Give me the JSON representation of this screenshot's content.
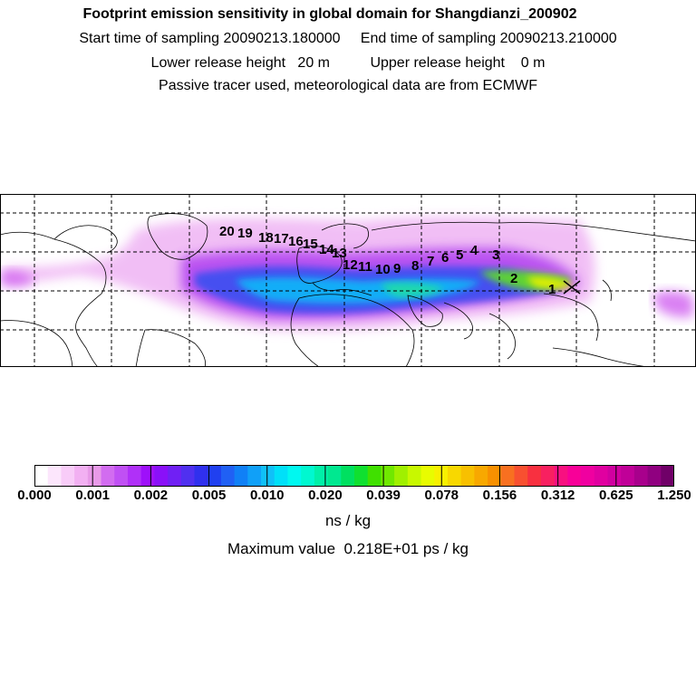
{
  "header": {
    "title": "Footprint emission sensitivity in global domain for Shangdianzi_200902",
    "line1": "Start time of sampling 20090213.180000     End time of sampling 20090213.210000",
    "line2": "Lower release height   20 m          Upper release height    0 m",
    "line3": "Passive tracer used, meteorological data are from ECMWF"
  },
  "map": {
    "grid": "dashed",
    "release_site_marker": "x-mark",
    "trajectory_labels": [
      "1",
      "2",
      "3",
      "4",
      "5",
      "6",
      "7",
      "8",
      "9",
      "10",
      "11",
      "12",
      "13",
      "14",
      "15",
      "16",
      "17",
      "18",
      "19",
      "20"
    ]
  },
  "colorbar": {
    "colors": [
      "#ffffff",
      "#fce6fc",
      "#f8ccf8",
      "#f2b0f2",
      "#e89ae8",
      "#d26cf0",
      "#c050f4",
      "#b030f8",
      "#9e10fa",
      "#8a10f8",
      "#7020f4",
      "#5030f0",
      "#3030ee",
      "#2040f0",
      "#2060f4",
      "#1080f6",
      "#10a0f8",
      "#10c0f8",
      "#00e0f8",
      "#00f8f0",
      "#00f8d0",
      "#00f0a8",
      "#00e890",
      "#00e060",
      "#10e030",
      "#40e000",
      "#70e800",
      "#a0f000",
      "#c8f800",
      "#e8fc00",
      "#f8f000",
      "#f8d800",
      "#f8c000",
      "#f8a800",
      "#f89000",
      "#f87020",
      "#f85030",
      "#f83040",
      "#f82060",
      "#f81080",
      "#f80098",
      "#f000a0",
      "#e000a0",
      "#d000a0",
      "#c00098",
      "#a8008c",
      "#900080",
      "#700068"
    ],
    "ticks": [
      "0.000",
      "0.001",
      "0.002",
      "0.005",
      "0.010",
      "0.020",
      "0.039",
      "0.078",
      "0.156",
      "0.312",
      "0.625",
      "1.250"
    ],
    "unit": "ns / kg"
  },
  "footer": {
    "max_value": "Maximum value  0.218E+01 ps / kg"
  }
}
